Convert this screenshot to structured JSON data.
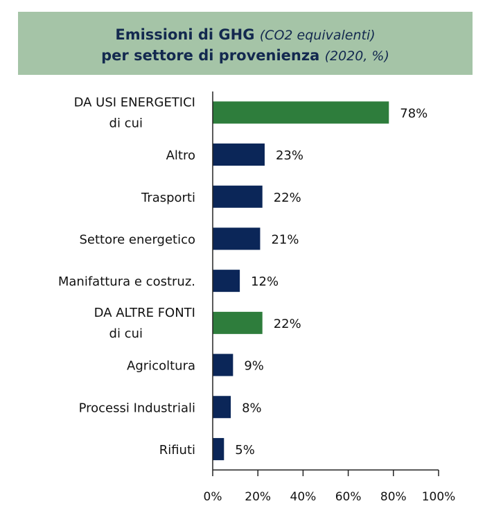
{
  "header": {
    "title_line1_main": "Emissioni di GHG",
    "title_line1_sub": "(CO2 equivalenti)",
    "title_line2_main": "per settore di provenienza",
    "title_line2_sub": "(2020, %)"
  },
  "colors": {
    "header_bg": "#a5c4a7",
    "group_bar": "#2e7d3c",
    "sub_bar": "#0b2658",
    "title": "#13294f"
  },
  "chart_data": {
    "type": "bar",
    "orientation": "horizontal",
    "title": "Emissioni di GHG (CO2 equivalenti) per settore di provenienza (2020, %)",
    "categories": [
      {
        "label": "DA USI ENERGETICI",
        "sublabel": "di cui",
        "value": 78,
        "value_label": "78%",
        "group": true
      },
      {
        "label": "Altro",
        "value": 23,
        "value_label": "23%",
        "group": false
      },
      {
        "label": "Trasporti",
        "value": 22,
        "value_label": "22%",
        "group": false
      },
      {
        "label": "Settore energetico",
        "value": 21,
        "value_label": "21%",
        "group": false
      },
      {
        "label": "Manifattura e costruz.",
        "value": 12,
        "value_label": "12%",
        "group": false
      },
      {
        "label": "DA ALTRE FONTI",
        "sublabel": "di cui",
        "value": 22,
        "value_label": "22%",
        "group": true
      },
      {
        "label": "Agricoltura",
        "value": 9,
        "value_label": "9%",
        "group": false
      },
      {
        "label": "Processi Industriali",
        "value": 8,
        "value_label": "8%",
        "group": false
      },
      {
        "label": "Rifiuti",
        "value": 5,
        "value_label": "5%",
        "group": false
      }
    ],
    "xlim": [
      0,
      100
    ],
    "xticks": [
      0,
      20,
      40,
      60,
      80,
      100
    ],
    "xtick_labels": [
      "0%",
      "20%",
      "40%",
      "60%",
      "80%",
      "100%"
    ],
    "xlabel": "",
    "ylabel": "",
    "grid": false,
    "legend": "none"
  }
}
